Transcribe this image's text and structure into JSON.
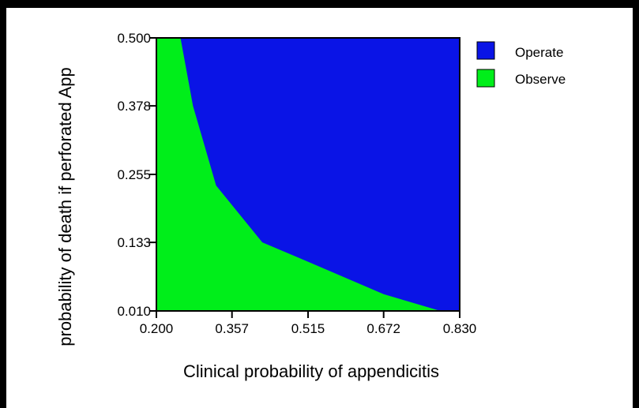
{
  "chart_data": {
    "type": "area",
    "xlabel": "Clinical probability of appendicitis",
    "ylabel": "probability of death if perforated App",
    "xlim": [
      0.2,
      0.83
    ],
    "ylim": [
      0.01,
      0.5
    ],
    "x_ticks": [
      "0.200",
      "0.357",
      "0.515",
      "0.672",
      "0.830"
    ],
    "y_ticks": [
      "0.010",
      "0.133",
      "0.255",
      "0.378",
      "0.500"
    ],
    "x_tick_values": [
      0.2,
      0.357,
      0.515,
      0.672,
      0.83
    ],
    "y_tick_values": [
      0.01,
      0.133,
      0.255,
      0.378,
      0.5
    ],
    "series": [
      {
        "name": "Operate",
        "color": "#0a14e6"
      },
      {
        "name": "Observe",
        "color": "#00ee1a"
      }
    ],
    "boundary": {
      "x": [
        0.231,
        0.25,
        0.276,
        0.324,
        0.42,
        0.51,
        0.672,
        0.79
      ],
      "y": [
        0.5,
        0.5,
        0.378,
        0.235,
        0.133,
        0.1,
        0.04,
        0.01
      ]
    },
    "legend_position": "top-right",
    "grid": false
  }
}
